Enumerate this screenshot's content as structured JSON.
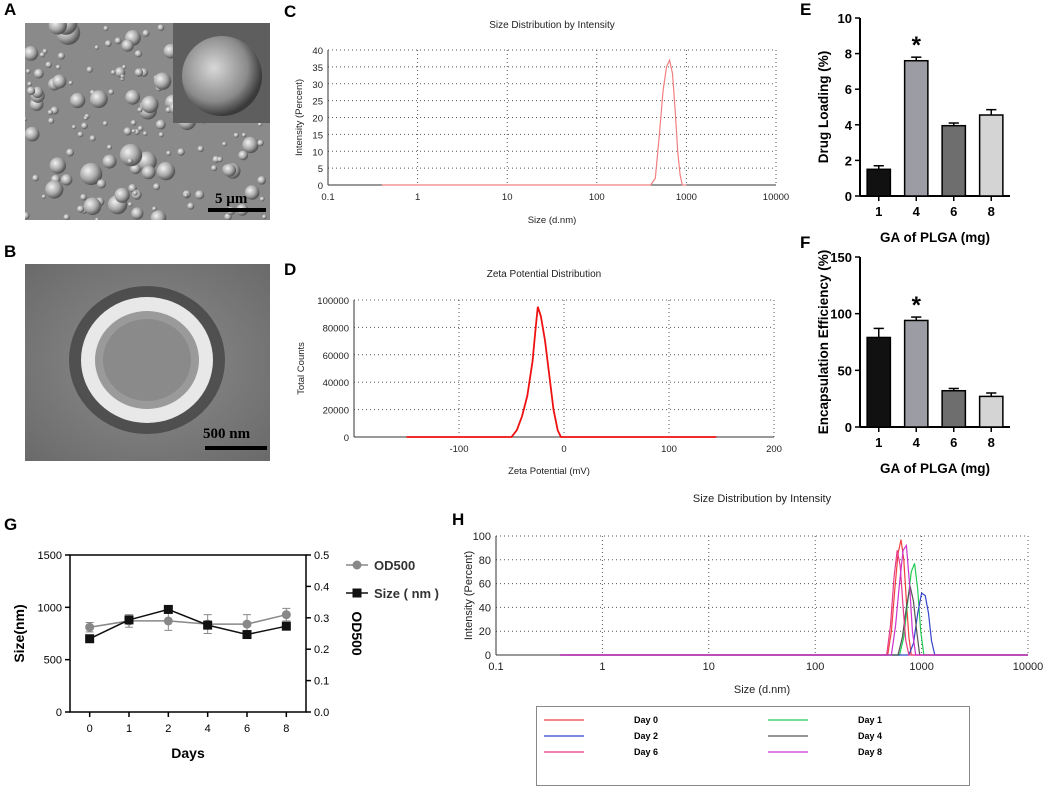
{
  "panels": {
    "a": {
      "letter": "A",
      "scale_label": "5 µm"
    },
    "b": {
      "letter": "B",
      "scale_label": "500 nm"
    },
    "c": {
      "letter": "C"
    },
    "d": {
      "letter": "D"
    },
    "e": {
      "letter": "E"
    },
    "f": {
      "letter": "F"
    },
    "g": {
      "letter": "G"
    },
    "h": {
      "letter": "H"
    }
  },
  "colors": {
    "pink_line": "#f08080",
    "red_line": "#ee1111",
    "bar_e": [
      "#111111",
      "#9c9ca4",
      "#6e6e6e",
      "#d4d4d4"
    ],
    "bar_f": [
      "#111111",
      "#9c9ca4",
      "#6e6e6e",
      "#d4d4d4"
    ],
    "od_series": "#888888",
    "size_series": "#111111"
  },
  "chart_data": [
    {
      "id": "C",
      "type": "line",
      "title": "Size Distribution by Intensity",
      "xlabel": "Size (d.nm)",
      "ylabel": "Intensity (Percent)",
      "xscale": "log",
      "xlim": [
        0.1,
        10000
      ],
      "ylim": [
        0,
        40
      ],
      "xticks": [
        "0.1",
        "1",
        "10",
        "100",
        "1000",
        "10000"
      ],
      "yticks": [
        "0",
        "5",
        "10",
        "15",
        "20",
        "25",
        "30",
        "35",
        "40"
      ],
      "grid": true,
      "series": [
        {
          "x": [
            0.4,
            400,
            450,
            500,
            550,
            600,
            650,
            700,
            750,
            800,
            850,
            900,
            1000
          ],
          "y": [
            0,
            0,
            2,
            15,
            28,
            35,
            37,
            33,
            22,
            10,
            3,
            0,
            0
          ]
        }
      ]
    },
    {
      "id": "D",
      "type": "line",
      "title": "Zeta Potential Distribution",
      "xlabel": "Zeta Potential (mV)",
      "ylabel": "Total Counts",
      "xlim": [
        -200,
        200
      ],
      "ylim": [
        0,
        100000
      ],
      "xticks": [
        "-100",
        "0",
        "100",
        "200"
      ],
      "yticks": [
        "0",
        "20000",
        "40000",
        "60000",
        "80000",
        "100000"
      ],
      "grid": true,
      "series": [
        {
          "x": [
            -150,
            -50,
            -45,
            -40,
            -35,
            -30,
            -27,
            -25,
            -22,
            -18,
            -14,
            -10,
            -6,
            -3,
            145
          ],
          "y": [
            0,
            0,
            5000,
            15000,
            30000,
            55000,
            80000,
            95000,
            88000,
            70000,
            45000,
            20000,
            5000,
            0,
            0
          ]
        }
      ]
    },
    {
      "id": "E",
      "type": "bar",
      "categories": [
        "1",
        "4",
        "6",
        "8"
      ],
      "values": [
        1.5,
        7.6,
        3.95,
        4.55
      ],
      "errors": [
        0.2,
        0.2,
        0.15,
        0.3
      ],
      "ylabel": "Drug Loading (%)",
      "xlabel": "GA of PLGA (mg)",
      "ylim": [
        0,
        10
      ],
      "yticks": [
        "0",
        "2",
        "4",
        "6",
        "8",
        "10"
      ],
      "annotations": [
        {
          "category": "4",
          "text": "*"
        }
      ]
    },
    {
      "id": "F",
      "type": "bar",
      "categories": [
        "1",
        "4",
        "6",
        "8"
      ],
      "values": [
        79,
        94,
        32,
        27
      ],
      "errors": [
        8,
        3,
        2,
        3
      ],
      "ylabel": "Encapsulation Efficiency (%)",
      "xlabel": "GA of PLGA (mg)",
      "ylim": [
        0,
        150
      ],
      "yticks": [
        "0",
        "50",
        "100",
        "150"
      ],
      "annotations": [
        {
          "category": "4",
          "text": "*"
        }
      ]
    },
    {
      "id": "G",
      "type": "line",
      "categories": [
        "0",
        "1",
        "2",
        "4",
        "6",
        "8"
      ],
      "xlabel": "Days",
      "ylabel": "Size(nm)",
      "ylabel_right": "OD500",
      "ylim": [
        0,
        1500
      ],
      "ylim_right": [
        0,
        0.5
      ],
      "yticks": [
        "0",
        "500",
        "1000",
        "1500"
      ],
      "yticks_right": [
        "0.0",
        "0.1",
        "0.2",
        "0.3",
        "0.4",
        "0.5"
      ],
      "legend": "top-right",
      "series": [
        {
          "name": "OD500",
          "axis": "right",
          "marker": "circle",
          "values": [
            0.27,
            0.29,
            0.29,
            0.28,
            0.28,
            0.31
          ],
          "errors": [
            0.015,
            0.02,
            0.03,
            0.03,
            0.03,
            0.02
          ]
        },
        {
          "name": "Size ( nm )",
          "axis": "left",
          "marker": "square",
          "values": [
            700,
            880,
            980,
            830,
            740,
            820
          ],
          "errors": [
            0,
            0,
            0,
            0,
            0,
            0
          ]
        }
      ]
    },
    {
      "id": "H",
      "type": "line",
      "title": "Size Distribution by Intensity",
      "xlabel": "Size (d.nm)",
      "ylabel": "Intensity (Percent)",
      "xscale": "log",
      "xlim": [
        0.1,
        10000
      ],
      "ylim": [
        0,
        100
      ],
      "xticks": [
        "0.1",
        "1",
        "10",
        "100",
        "1000",
        "10000"
      ],
      "yticks": [
        "0",
        "20",
        "40",
        "60",
        "80",
        "100"
      ],
      "grid": true,
      "legend": "bottom",
      "series": [
        {
          "name": "Day 0",
          "color": "#f04040",
          "x": [
            0.4,
            480,
            520,
            560,
            600,
            640,
            680,
            720,
            760,
            800,
            10000
          ],
          "y": [
            0,
            0,
            20,
            55,
            85,
            97,
            80,
            45,
            15,
            0,
            0
          ]
        },
        {
          "name": "Day 1",
          "color": "#22cc55",
          "x": [
            0.4,
            620,
            680,
            740,
            800,
            860,
            920,
            980,
            1050,
            10000
          ],
          "y": [
            0,
            0,
            15,
            45,
            70,
            77,
            55,
            20,
            0,
            0
          ]
        },
        {
          "name": "Day 2",
          "color": "#3344cc",
          "x": [
            0.4,
            760,
            840,
            920,
            1000,
            1080,
            1160,
            1240,
            1330,
            10000
          ],
          "y": [
            0,
            0,
            10,
            35,
            52,
            50,
            35,
            12,
            0,
            0
          ]
        },
        {
          "name": "Day 4",
          "color": "#555555",
          "x": [
            0.4,
            600,
            660,
            720,
            780,
            840,
            900,
            960,
            10000
          ],
          "y": [
            0,
            0,
            15,
            40,
            58,
            45,
            20,
            0,
            0
          ]
        },
        {
          "name": "Day 6",
          "color": "#e83a8a",
          "x": [
            0.4,
            470,
            510,
            550,
            590,
            630,
            670,
            710,
            760,
            10000
          ],
          "y": [
            0,
            0,
            25,
            65,
            88,
            75,
            40,
            12,
            0,
            0
          ]
        },
        {
          "name": "Day 8",
          "color": "#cc33cc",
          "x": [
            0.4,
            520,
            570,
            620,
            670,
            720,
            770,
            820,
            880,
            10000
          ],
          "y": [
            0,
            0,
            25,
            60,
            88,
            92,
            60,
            20,
            0,
            0
          ]
        }
      ]
    }
  ]
}
